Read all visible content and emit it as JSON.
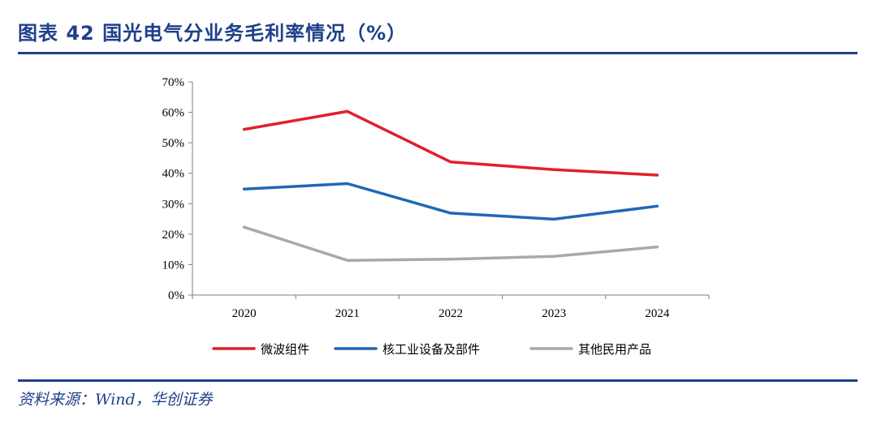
{
  "header": {
    "title": "图表 42   国光电气分业务毛利率情况（%）"
  },
  "source": "资料来源：Wind，华创证券",
  "chart_data": {
    "type": "line",
    "categories": [
      "2020",
      "2021",
      "2022",
      "2023",
      "2024"
    ],
    "yticks": [
      "0%",
      "10%",
      "20%",
      "30%",
      "40%",
      "50%",
      "60%",
      "70%"
    ],
    "ylim": [
      0,
      70
    ],
    "grid": false,
    "legend_position": "bottom",
    "series": [
      {
        "name": "微波组件",
        "color": "#e0202b",
        "values": [
          54.4,
          60.3,
          43.7,
          41.2,
          39.4
        ]
      },
      {
        "name": "核工业设备及部件",
        "color": "#1f68b5",
        "values": [
          34.8,
          36.6,
          26.9,
          24.9,
          29.2
        ]
      },
      {
        "name": "其他民用产品",
        "color": "#a9a9a9",
        "values": [
          22.3,
          11.4,
          11.8,
          12.7,
          15.8
        ]
      }
    ]
  }
}
